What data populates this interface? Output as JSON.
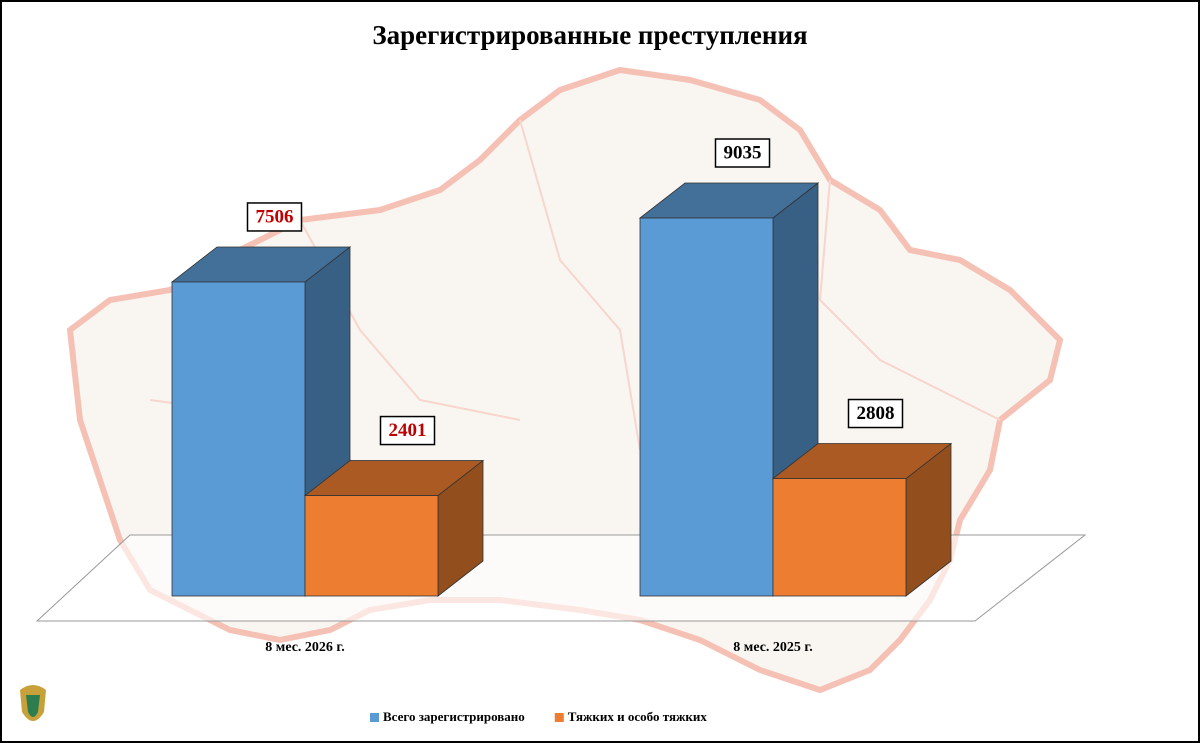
{
  "chart_data": {
    "type": "bar3d",
    "title": "Зарегистрированные преступления",
    "categories": [
      "8 мес. 2026 г.",
      "8 мес. 2025 г."
    ],
    "series": [
      {
        "name": "Всего зарегистрировано",
        "color": "#5b9bd5",
        "values": [
          7506,
          9035
        ]
      },
      {
        "name": "Тяжких и особо тяжких",
        "color": "#ed7d31",
        "values": [
          2401,
          2808
        ]
      }
    ],
    "value_label_colors": [
      "#c00000",
      "#000000"
    ],
    "legend": "bottom"
  }
}
